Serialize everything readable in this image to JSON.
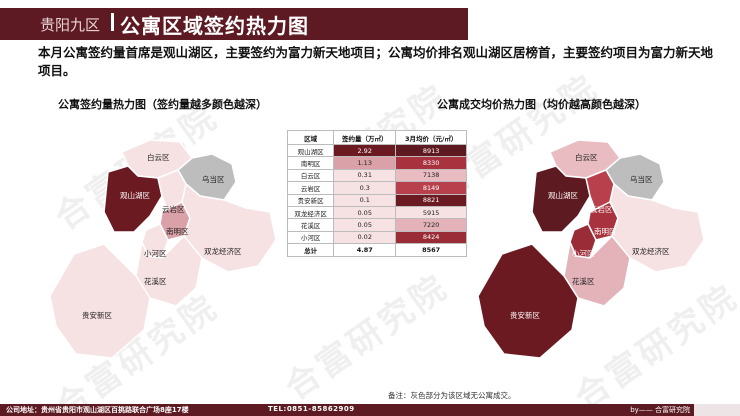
{
  "header": {
    "subtitle": "贵阳九区",
    "title": "公寓区域签约热力图"
  },
  "summary": "本月公寓签约量首席是观山湖区，主要签约为富力新天地项目；公寓均价排名观山湖区居榜首，主要签约项目为富力新天地项目。",
  "left_map": {
    "title": "公寓签约量热力图（签约量越多颜色越深）"
  },
  "right_map": {
    "title": "公寓成交均价热力图（均价越高颜色越深）"
  },
  "regions": {
    "baiyun": "白云区",
    "wudang": "乌当区",
    "guanshanhu": "观山湖区",
    "yunyan": "云岩区",
    "nanming": "南明区",
    "xiaohe": "小河区",
    "shuanglong": "双龙经济区",
    "huaxi": "花溪区",
    "guian": "贵安新区"
  },
  "table": {
    "headers": [
      "区域",
      "签约量（万㎡）",
      "3月均价（元/㎡）"
    ],
    "rows": [
      {
        "name": "观山湖区",
        "volume": "2.92",
        "price": "8913",
        "vcolor": "#6b1a22",
        "pcolor": "#5e1a21"
      },
      {
        "name": "南明区",
        "volume": "1.13",
        "price": "8330",
        "vcolor": "#dba1a8",
        "pcolor": "#a8323e"
      },
      {
        "name": "白云区",
        "volume": "0.31",
        "price": "7138",
        "vcolor": "#f6e1e3",
        "pcolor": "#e8bcc1"
      },
      {
        "name": "云岩区",
        "volume": "0.3",
        "price": "8149",
        "vcolor": "#f6e1e3",
        "pcolor": "#b8404c"
      },
      {
        "name": "贵安新区",
        "volume": "0.1",
        "price": "8821",
        "vcolor": "#f6e1e3",
        "pcolor": "#6b1a22"
      },
      {
        "name": "双龙经济区",
        "volume": "0.05",
        "price": "5915",
        "vcolor": "#f6e1e3",
        "pcolor": "#f6e1e3"
      },
      {
        "name": "花溪区",
        "volume": "0.05",
        "price": "7220",
        "vcolor": "#f6e1e3",
        "pcolor": "#e3b3b9"
      },
      {
        "name": "小河区",
        "volume": "0.02",
        "price": "8424",
        "vcolor": "#f6e1e3",
        "pcolor": "#9a2c37"
      }
    ],
    "total": {
      "name": "总计",
      "volume": "4.87",
      "price": "8567"
    }
  },
  "note": "备注：灰色部分为该区域无公寓成交。",
  "footer": {
    "address": "公司地址：贵州省贵阳市观山湖区百挑路联合广场8座17楼",
    "tel": "TEL:0851-85862909",
    "brand": "by—— 合富研究院"
  },
  "watermark": "合富研究院",
  "colors": {
    "brand": "#5d1a22",
    "no_data": "#bdbdbd"
  }
}
